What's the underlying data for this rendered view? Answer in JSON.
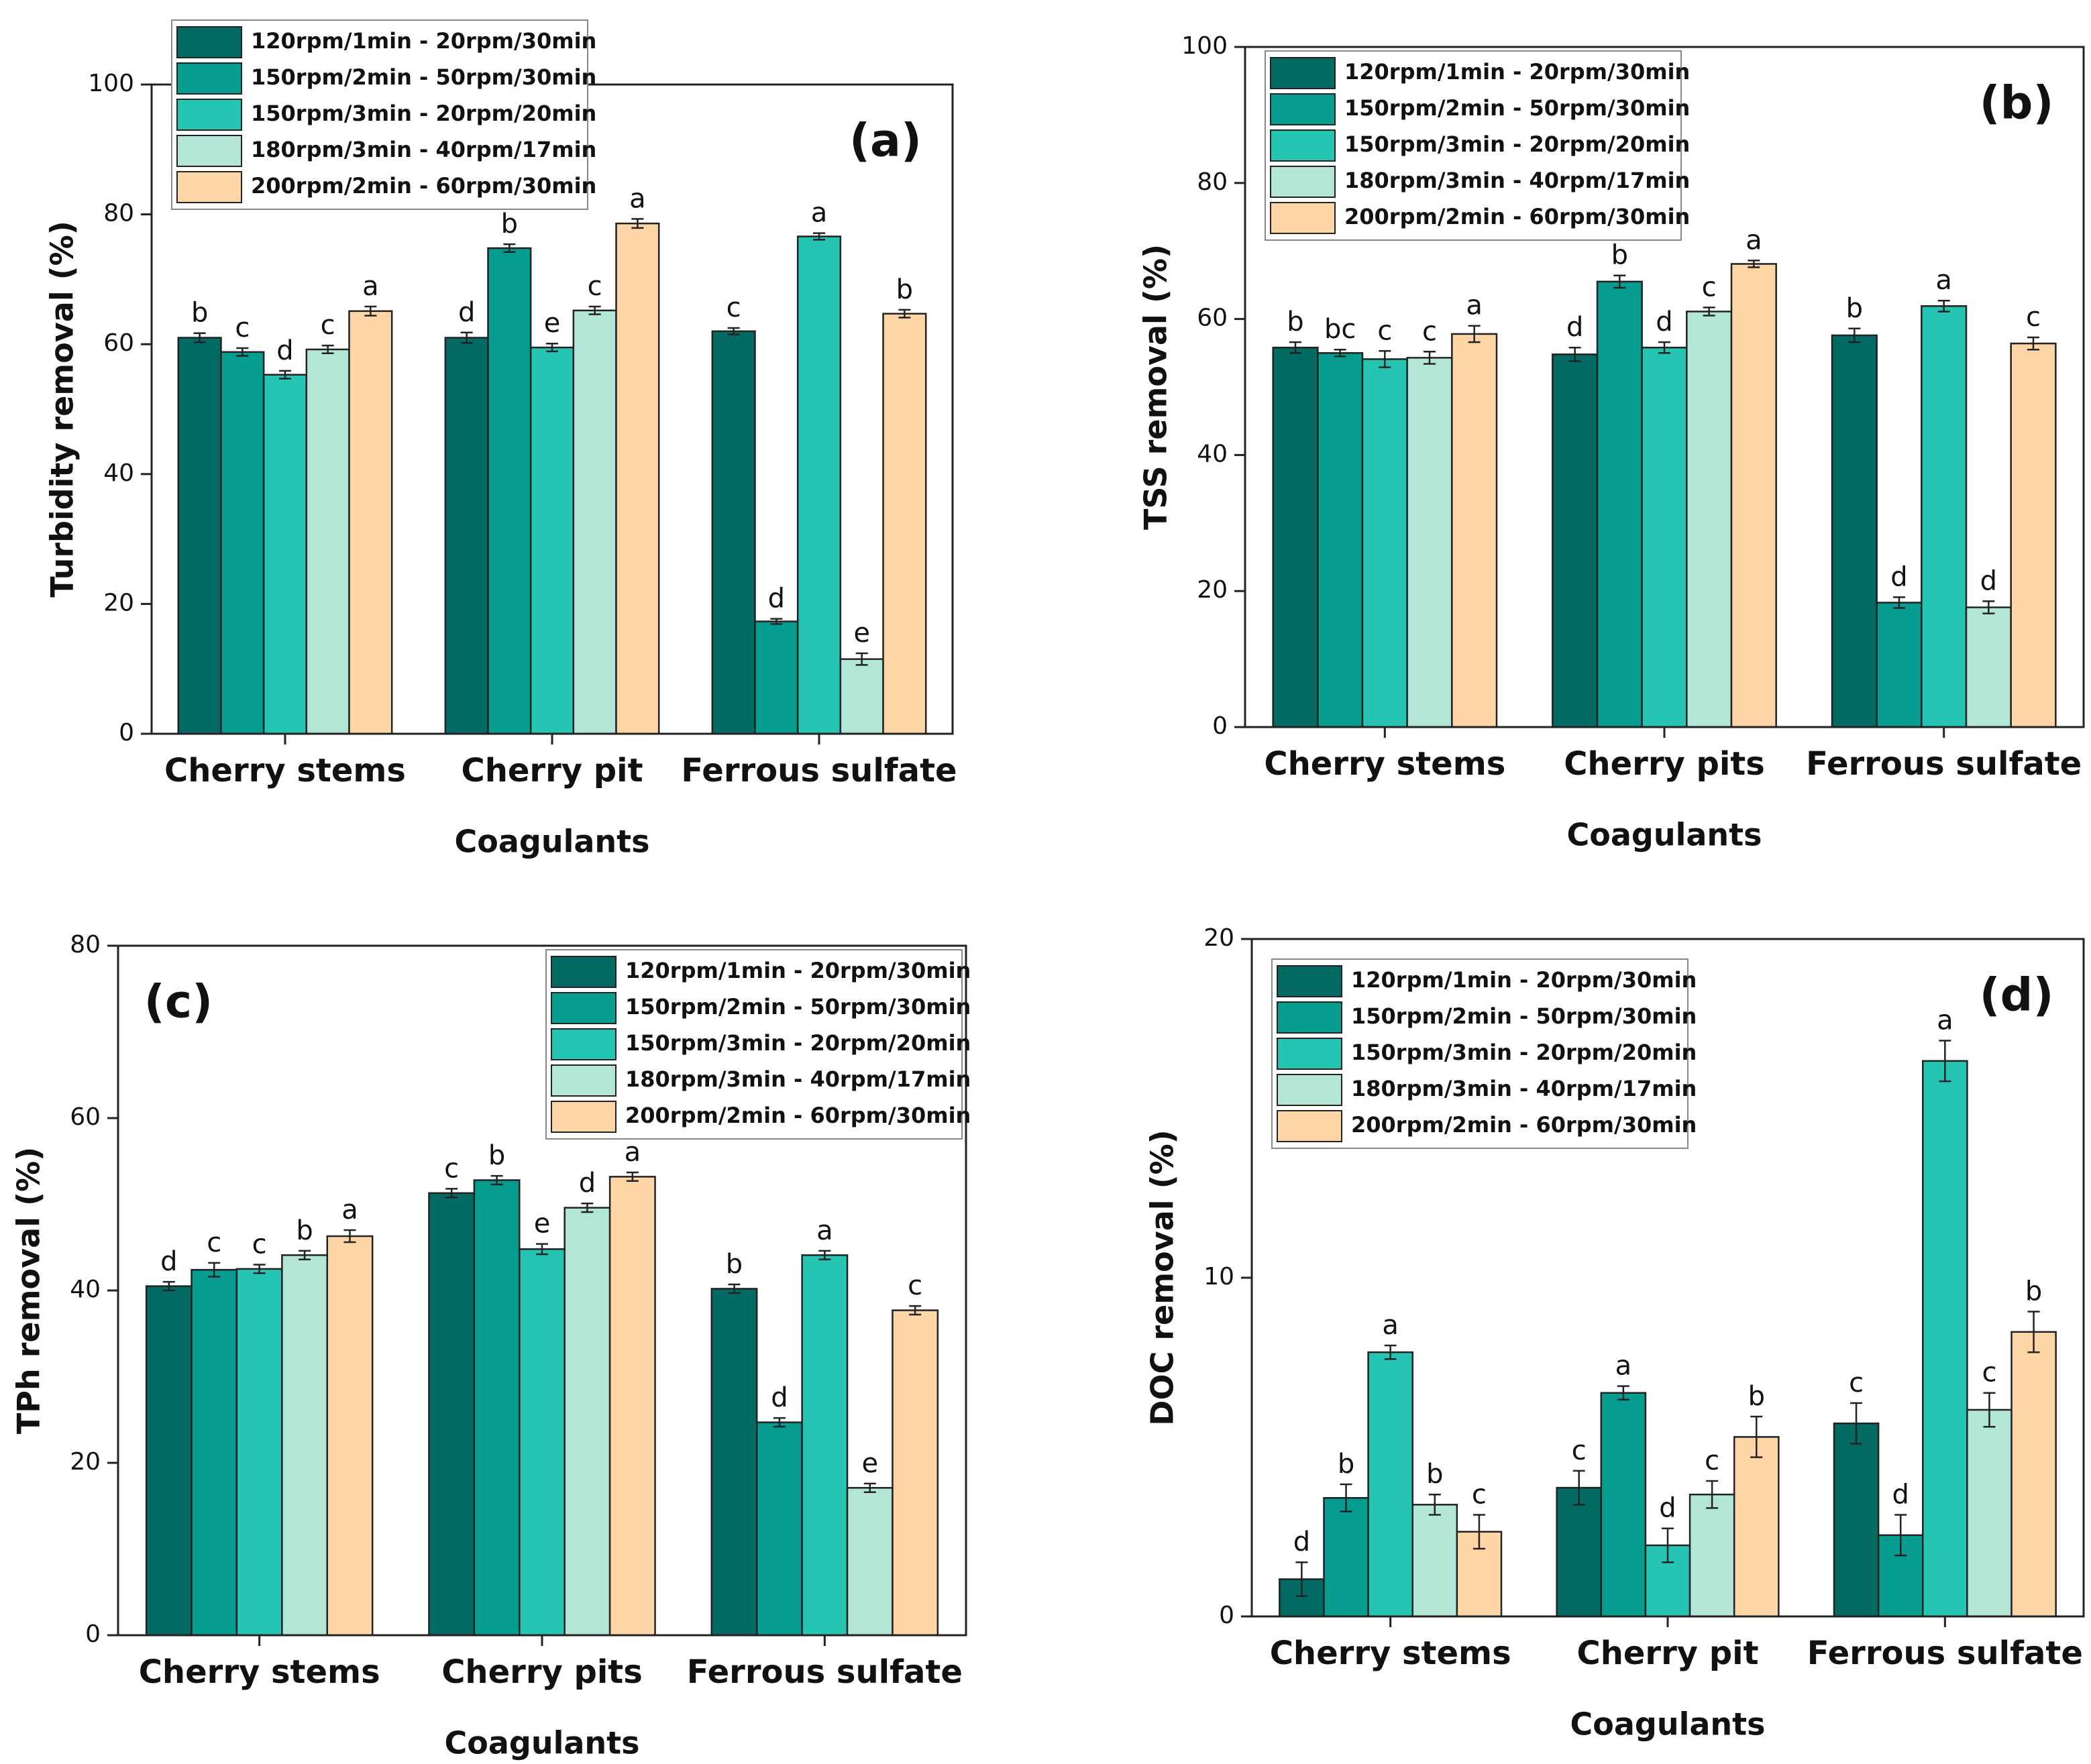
{
  "chart_data": [
    {
      "type": "bar",
      "panel_label": "(a)",
      "xlabel": "Coagulants",
      "ylabel": "Turbidity removal (%)",
      "categories": [
        "Cherry stems",
        "Cherry pit",
        "Ferrous sulfate"
      ],
      "ylim": [
        0,
        100
      ],
      "yticks": [
        0,
        20,
        40,
        60,
        80,
        100
      ],
      "legend": "upper left",
      "series": [
        {
          "name": "120rpm/1min - 20rpm/30min",
          "color": "#036b63",
          "values": [
            61.0,
            61.0,
            62.0
          ],
          "errors": [
            0.7,
            0.8,
            0.5
          ],
          "letters": [
            "b",
            "d",
            "c"
          ]
        },
        {
          "name": "150rpm/2min - 50rpm/30min",
          "color": "#069c8f",
          "values": [
            58.8,
            74.8,
            17.3
          ],
          "errors": [
            0.6,
            0.6,
            0.4
          ],
          "letters": [
            "c",
            "b",
            "d"
          ]
        },
        {
          "name": "150rpm/3min - 20rpm/20min",
          "color": "#26c4b2",
          "values": [
            55.3,
            59.5,
            76.6
          ],
          "errors": [
            0.6,
            0.6,
            0.5
          ],
          "letters": [
            "d",
            "e",
            "a"
          ]
        },
        {
          "name": "180rpm/3min - 40rpm/17min",
          "color": "#b3e6d6",
          "values": [
            59.2,
            65.2,
            11.5
          ],
          "errors": [
            0.6,
            0.6,
            0.9
          ],
          "letters": [
            "c",
            "c",
            "e"
          ]
        },
        {
          "name": "200rpm/2min - 60rpm/30min",
          "color": "#fdd5a6",
          "values": [
            65.1,
            78.6,
            64.7
          ],
          "errors": [
            0.7,
            0.7,
            0.6
          ],
          "letters": [
            "a",
            "a",
            "b"
          ]
        }
      ]
    },
    {
      "type": "bar",
      "panel_label": "(b)",
      "xlabel": "Coagulants",
      "ylabel": "TSS removal (%)",
      "categories": [
        "Cherry stems",
        "Cherry pits",
        "Ferrous sulfate"
      ],
      "ylim": [
        0,
        100
      ],
      "yticks": [
        0,
        20,
        40,
        60,
        80,
        100
      ],
      "legend": "upper left",
      "series": [
        {
          "name": "120rpm/1min - 20rpm/30min",
          "color": "#036b63",
          "values": [
            55.8,
            54.8,
            57.6
          ],
          "errors": [
            0.8,
            1.0,
            1.0
          ],
          "letters": [
            "b",
            "d",
            "b"
          ]
        },
        {
          "name": "150rpm/2min - 50rpm/30min",
          "color": "#069c8f",
          "values": [
            55.0,
            65.5,
            18.3
          ],
          "errors": [
            0.5,
            0.9,
            0.8
          ],
          "letters": [
            "bc",
            "b",
            "d"
          ]
        },
        {
          "name": "150rpm/3min - 20rpm/20min",
          "color": "#26c4b2",
          "values": [
            54.1,
            55.8,
            61.9
          ],
          "errors": [
            1.2,
            0.8,
            0.8
          ],
          "letters": [
            "c",
            "d",
            "a"
          ]
        },
        {
          "name": "180rpm/3min - 40rpm/17min",
          "color": "#b3e6d6",
          "values": [
            54.3,
            61.1,
            17.6
          ],
          "errors": [
            0.9,
            0.6,
            0.9
          ],
          "letters": [
            "c",
            "c",
            "d"
          ]
        },
        {
          "name": "200rpm/2min - 60rpm/30min",
          "color": "#fdd5a6",
          "values": [
            57.8,
            68.1,
            56.4
          ],
          "errors": [
            1.2,
            0.5,
            0.9
          ],
          "letters": [
            "a",
            "a",
            "c"
          ]
        }
      ]
    },
    {
      "type": "bar",
      "panel_label": "(c)",
      "xlabel": "Coagulants",
      "ylabel": "TPh removal (%)",
      "categories": [
        "Cherry stems",
        "Cherry pits",
        "Ferrous sulfate"
      ],
      "ylim": [
        0,
        80
      ],
      "yticks": [
        0,
        20,
        40,
        60,
        80
      ],
      "legend": "upper right",
      "series": [
        {
          "name": "120rpm/1min - 20rpm/30min",
          "color": "#036b63",
          "values": [
            40.5,
            51.3,
            40.2
          ],
          "errors": [
            0.5,
            0.5,
            0.5
          ],
          "letters": [
            "d",
            "c",
            "b"
          ]
        },
        {
          "name": "150rpm/2min - 50rpm/30min",
          "color": "#069c8f",
          "values": [
            42.4,
            52.8,
            24.7
          ],
          "errors": [
            0.8,
            0.5,
            0.5
          ],
          "letters": [
            "c",
            "b",
            "d"
          ]
        },
        {
          "name": "150rpm/3min - 20rpm/20min",
          "color": "#26c4b2",
          "values": [
            42.5,
            44.8,
            44.1
          ],
          "errors": [
            0.5,
            0.6,
            0.5
          ],
          "letters": [
            "c",
            "e",
            "a"
          ]
        },
        {
          "name": "180rpm/3min - 40rpm/17min",
          "color": "#b3e6d6",
          "values": [
            44.1,
            49.6,
            17.1
          ],
          "errors": [
            0.5,
            0.5,
            0.5
          ],
          "letters": [
            "b",
            "d",
            "e"
          ]
        },
        {
          "name": "200rpm/2min - 60rpm/30min",
          "color": "#fdd5a6",
          "values": [
            46.3,
            53.2,
            37.7
          ],
          "errors": [
            0.7,
            0.5,
            0.5
          ],
          "letters": [
            "a",
            "a",
            "c"
          ]
        }
      ]
    },
    {
      "type": "bar",
      "panel_label": "(d)",
      "xlabel": "Coagulants",
      "ylabel": "DOC removal (%)",
      "categories": [
        "Cherry stems",
        "Cherry pit",
        "Ferrous sulfate"
      ],
      "ylim": [
        0,
        20
      ],
      "yticks": [
        0,
        10,
        20
      ],
      "legend": "upper left",
      "series": [
        {
          "name": "120rpm/1min - 20rpm/30min",
          "color": "#036b63",
          "values": [
            1.1,
            3.8,
            5.7
          ],
          "errors": [
            0.5,
            0.5,
            0.6
          ],
          "letters": [
            "d",
            "c",
            "c"
          ]
        },
        {
          "name": "150rpm/2min - 50rpm/30min",
          "color": "#069c8f",
          "values": [
            3.5,
            6.6,
            2.4
          ],
          "errors": [
            0.4,
            0.2,
            0.6
          ],
          "letters": [
            "b",
            "a",
            "d"
          ]
        },
        {
          "name": "150rpm/3min - 20rpm/20min",
          "color": "#26c4b2",
          "values": [
            7.8,
            2.1,
            16.4
          ],
          "errors": [
            0.2,
            0.5,
            0.6
          ],
          "letters": [
            "a",
            "d",
            "a"
          ]
        },
        {
          "name": "180rpm/3min - 40rpm/17min",
          "color": "#b3e6d6",
          "values": [
            3.3,
            3.6,
            6.1
          ],
          "errors": [
            0.3,
            0.4,
            0.5
          ],
          "letters": [
            "b",
            "c",
            "c"
          ]
        },
        {
          "name": "200rpm/2min - 60rpm/30min",
          "color": "#fdd5a6",
          "values": [
            2.5,
            5.3,
            8.4
          ],
          "errors": [
            0.5,
            0.6,
            0.6
          ],
          "letters": [
            "c",
            "b",
            "b"
          ]
        }
      ]
    }
  ]
}
